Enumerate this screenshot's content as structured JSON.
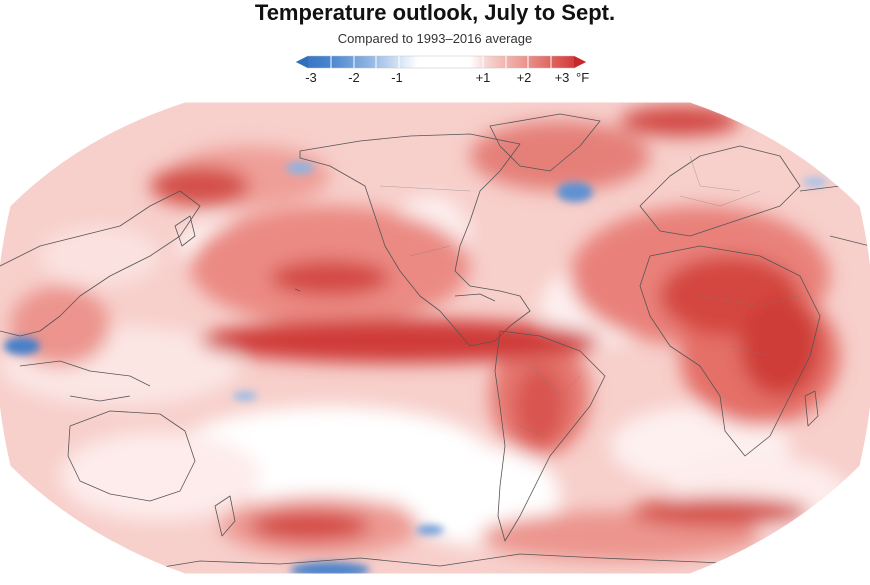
{
  "title": "Temperature outlook, July to Sept.",
  "subtitle": "Compared to 1993–2016 average",
  "legend": {
    "ticks": [
      "-3",
      "-2",
      "-1",
      "+1",
      "+2",
      "+3"
    ],
    "unit": "°F",
    "colors": {
      "cold_strong": "#2f6fbf",
      "cold_mid": "#6b9ad6",
      "cold_light": "#b9d0ee",
      "neutral": "#ffffff",
      "warm_light": "#f6c1bd",
      "warm_mid": "#e5736b",
      "warm_strong": "#c8282c"
    }
  },
  "map": {
    "projection": "Robinson",
    "coastline_color": "#555555",
    "land_hint": "world"
  }
}
